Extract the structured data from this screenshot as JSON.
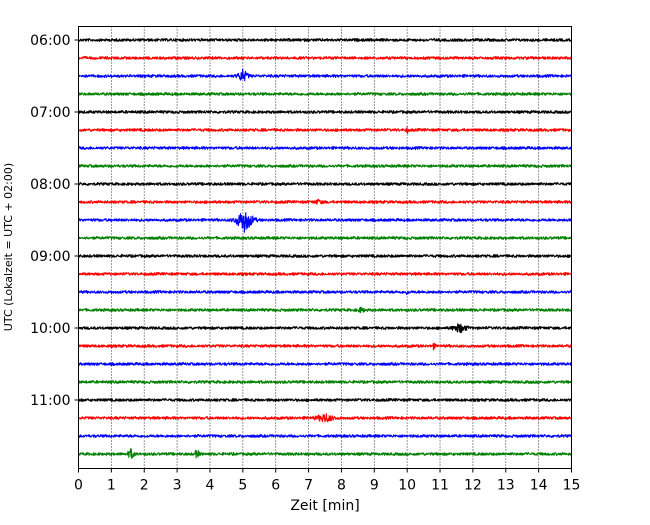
{
  "chart_data": {
    "type": "line",
    "title": "",
    "xlabel": "Zeit  [min]",
    "ylabel": "UTC (Lokalzeit = UTC + 02:00)",
    "xlim": [
      0,
      15
    ],
    "x_ticks": [
      0,
      1,
      2,
      3,
      4,
      5,
      6,
      7,
      8,
      9,
      10,
      11,
      12,
      13,
      14,
      15
    ],
    "x_tick_labels": [
      "0",
      "1",
      "2",
      "3",
      "4",
      "5",
      "6",
      "7",
      "8",
      "9",
      "10",
      "11",
      "12",
      "13",
      "14",
      "15"
    ],
    "y_tick_labels": [
      "06:00",
      "07:00",
      "08:00",
      "09:00",
      "10:00",
      "11:00"
    ],
    "y_tick_rows": [
      0,
      4,
      8,
      12,
      16,
      20
    ],
    "grid": "vertical dotted lines at each minute",
    "legend": "none",
    "trace_colors": [
      "#000000",
      "#ff0000",
      "#0000ff",
      "#008000"
    ],
    "rows": [
      {
        "start": "06:00",
        "color": "#000000",
        "events": []
      },
      {
        "start": "06:15",
        "color": "#ff0000",
        "events": []
      },
      {
        "start": "06:30",
        "color": "#0000ff",
        "events": [
          {
            "t": 5.0,
            "amplitude": 0.7,
            "duration": 0.6
          }
        ]
      },
      {
        "start": "06:45",
        "color": "#008000",
        "events": []
      },
      {
        "start": "07:00",
        "color": "#000000",
        "events": []
      },
      {
        "start": "07:15",
        "color": "#ff0000",
        "events": [
          {
            "t": 10.0,
            "amplitude": 0.3,
            "duration": 0.15
          }
        ]
      },
      {
        "start": "07:30",
        "color": "#0000ff",
        "events": []
      },
      {
        "start": "07:45",
        "color": "#008000",
        "events": []
      },
      {
        "start": "08:00",
        "color": "#000000",
        "events": []
      },
      {
        "start": "08:15",
        "color": "#ff0000",
        "events": [
          {
            "t": 7.3,
            "amplitude": 0.2,
            "duration": 0.5
          }
        ]
      },
      {
        "start": "08:30",
        "color": "#0000ff",
        "events": [
          {
            "t": 5.05,
            "amplitude": 1.3,
            "duration": 1.0
          }
        ]
      },
      {
        "start": "08:45",
        "color": "#008000",
        "events": []
      },
      {
        "start": "09:00",
        "color": "#000000",
        "events": []
      },
      {
        "start": "09:15",
        "color": "#ff0000",
        "events": []
      },
      {
        "start": "09:30",
        "color": "#0000ff",
        "events": [
          {
            "t": 10.0,
            "amplitude": 0.3,
            "duration": 0.15
          }
        ]
      },
      {
        "start": "09:45",
        "color": "#008000",
        "events": [
          {
            "t": 8.6,
            "amplitude": 0.25,
            "duration": 0.4
          }
        ]
      },
      {
        "start": "10:00",
        "color": "#000000",
        "events": [
          {
            "t": 11.6,
            "amplitude": 0.5,
            "duration": 0.8
          }
        ]
      },
      {
        "start": "10:15",
        "color": "#ff0000",
        "events": [
          {
            "t": 10.8,
            "amplitude": 0.3,
            "duration": 0.2
          }
        ]
      },
      {
        "start": "10:30",
        "color": "#0000ff",
        "events": []
      },
      {
        "start": "10:45",
        "color": "#008000",
        "events": []
      },
      {
        "start": "11:00",
        "color": "#000000",
        "events": []
      },
      {
        "start": "11:15",
        "color": "#ff0000",
        "events": [
          {
            "t": 7.5,
            "amplitude": 0.45,
            "duration": 1.0
          }
        ]
      },
      {
        "start": "11:30",
        "color": "#0000ff",
        "events": []
      },
      {
        "start": "11:45",
        "color": "#008000",
        "events": [
          {
            "t": 1.6,
            "amplitude": 0.55,
            "duration": 0.4
          },
          {
            "t": 3.6,
            "amplitude": 0.45,
            "duration": 0.3
          }
        ]
      }
    ]
  }
}
